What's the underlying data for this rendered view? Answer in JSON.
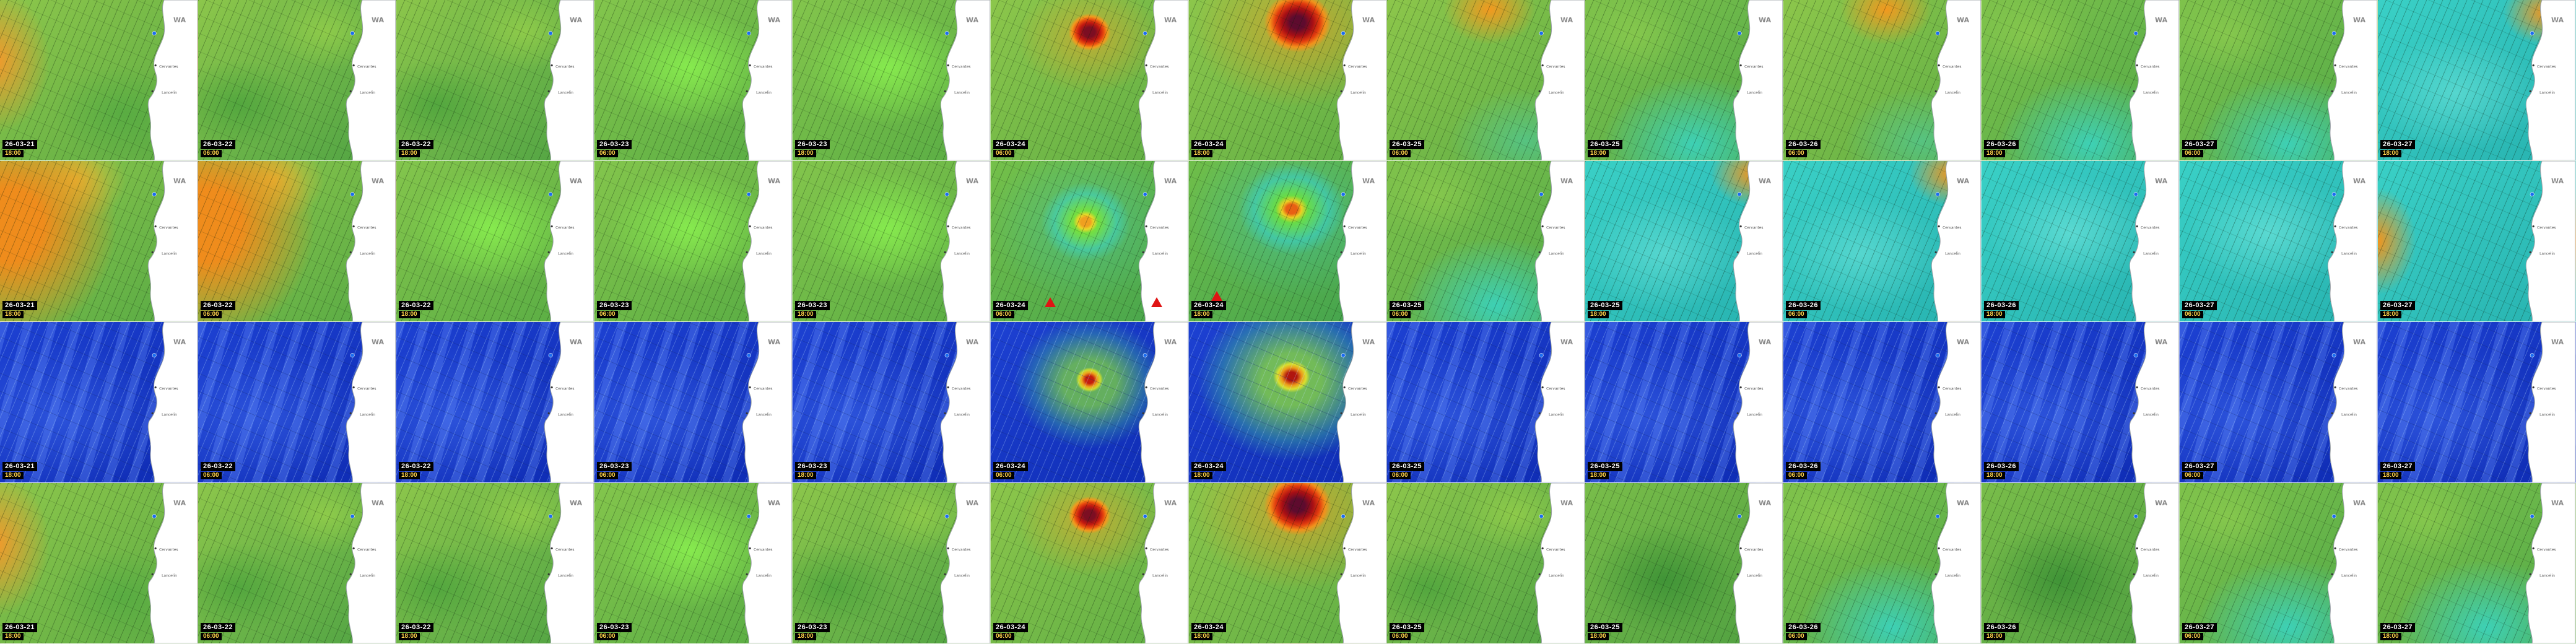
{
  "map": {
    "region_label": "WA",
    "labels": [
      {
        "text": "WA",
        "cls": "region"
      },
      {
        "text": "Cervantes",
        "cls": "town"
      },
      {
        "text": "Lancelin",
        "cls": "town"
      }
    ],
    "land_color": "#ffffff",
    "pin_color": "#1a6cf0"
  },
  "palette": {
    "calm_green": "#8cc64b",
    "bright_green": "#86ea4e",
    "fresh_cyan": "#3ad0c6",
    "strong_orange": "#f2951d",
    "severe_red": "#c01810",
    "extreme_maroon": "#5e0b2e",
    "swell_blue": "#1d41d2",
    "badge_time_yellow": "#ffd24a",
    "warning_red": "#e01414"
  },
  "grid": {
    "columns": [
      {
        "date": "26-03-21",
        "time": "18:00"
      },
      {
        "date": "26-03-22",
        "time": "06:00"
      },
      {
        "date": "26-03-22",
        "time": "18:00"
      },
      {
        "date": "26-03-23",
        "time": "06:00"
      },
      {
        "date": "26-03-23",
        "time": "18:00"
      },
      {
        "date": "26-03-24",
        "time": "06:00"
      },
      {
        "date": "26-03-24",
        "time": "18:00"
      },
      {
        "date": "26-03-25",
        "time": "06:00"
      },
      {
        "date": "26-03-25",
        "time": "18:00"
      },
      {
        "date": "26-03-26",
        "time": "06:00"
      },
      {
        "date": "26-03-26",
        "time": "18:00"
      },
      {
        "date": "26-03-27",
        "time": "06:00"
      },
      {
        "date": "26-03-27",
        "time": "18:00"
      }
    ],
    "rows": [
      {
        "name": "row-1",
        "dark": false,
        "tiles": [
          {
            "field": "green-orl"
          },
          {
            "field": "green"
          },
          {
            "field": "green"
          },
          {
            "field": "green-bright"
          },
          {
            "field": "green-bright"
          },
          {
            "field": "cyclone"
          },
          {
            "field": "cyclone-big"
          },
          {
            "field": "green-otc"
          },
          {
            "field": "green-cyan"
          },
          {
            "field": "green-otc"
          },
          {
            "field": "green-cyan"
          },
          {
            "field": "green-cyan"
          },
          {
            "field": "cyan-otr"
          }
        ]
      },
      {
        "name": "row-2",
        "dark": false,
        "tiles": [
          {
            "field": "orange-left"
          },
          {
            "field": "orange-left"
          },
          {
            "field": "green-bright"
          },
          {
            "field": "green-bright"
          },
          {
            "field": "green-bright"
          },
          {
            "field": "swirl",
            "warnings": [
              {
                "x": 30,
                "y": 88
              },
              {
                "x": 84,
                "y": 88
              }
            ]
          },
          {
            "field": "swirl2",
            "warnings": [
              {
                "x": 14,
                "y": 84
              }
            ]
          },
          {
            "field": "green-cyan"
          },
          {
            "field": "cyan-otr"
          },
          {
            "field": "cyan-otr"
          },
          {
            "field": "cyan"
          },
          {
            "field": "cyan"
          },
          {
            "field": "cyan-orl"
          }
        ]
      },
      {
        "name": "row-3",
        "dark": true,
        "tiles": [
          {
            "field": "blue"
          },
          {
            "field": "blue"
          },
          {
            "field": "blue"
          },
          {
            "field": "blue"
          },
          {
            "field": "blue"
          },
          {
            "field": "blue-cyc"
          },
          {
            "field": "blue-cyc-big"
          },
          {
            "field": "blue"
          },
          {
            "field": "blue"
          },
          {
            "field": "blue"
          },
          {
            "field": "blue"
          },
          {
            "field": "blue"
          },
          {
            "field": "blue"
          }
        ]
      },
      {
        "name": "row-4",
        "dark": false,
        "tiles": [
          {
            "field": "green-orl"
          },
          {
            "field": "green"
          },
          {
            "field": "green"
          },
          {
            "field": "green-bright"
          },
          {
            "field": "green"
          },
          {
            "field": "cyclone"
          },
          {
            "field": "cyclone-big"
          },
          {
            "field": "green"
          },
          {
            "field": "green-dark"
          },
          {
            "field": "green-cyan"
          },
          {
            "field": "green-dark"
          },
          {
            "field": "green-cyan"
          },
          {
            "field": "green-cyan"
          }
        ]
      }
    ]
  }
}
